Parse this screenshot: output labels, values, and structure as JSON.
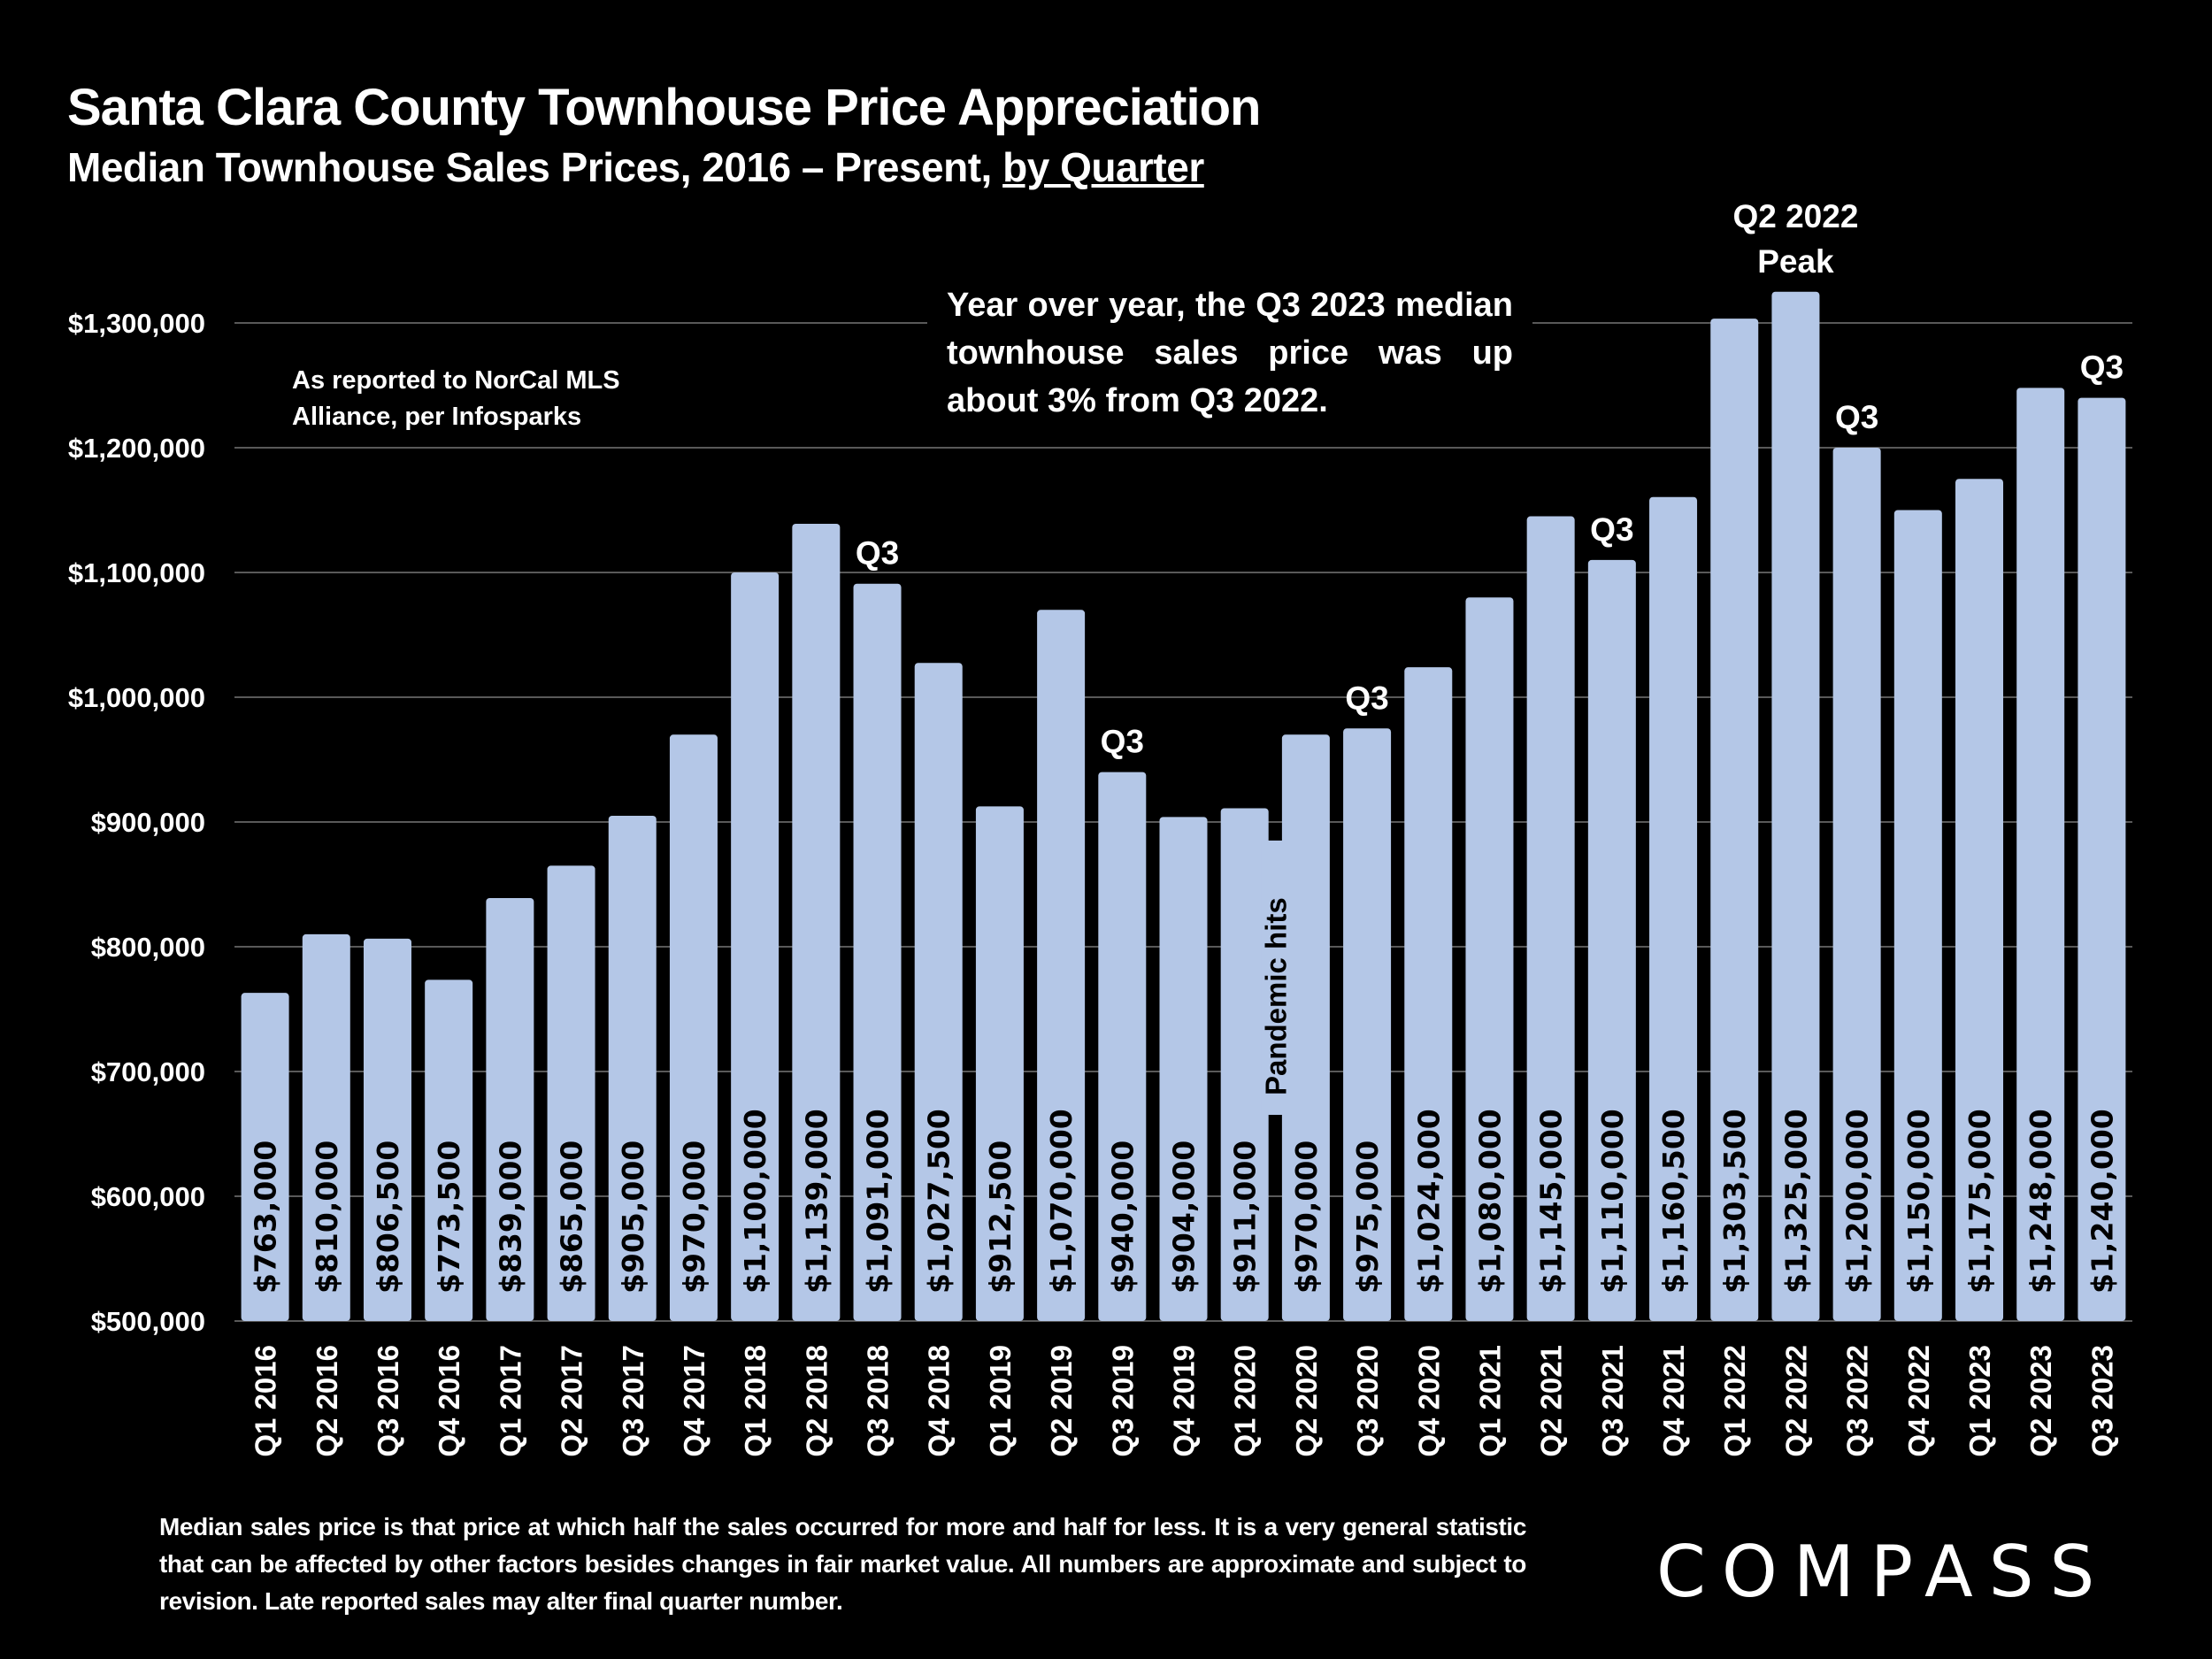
{
  "header": {
    "title": "Santa Clara County Townhouse Price Appreciation",
    "subtitle_main": "Median Townhouse Sales Prices, 2016 – Present, ",
    "subtitle_underlined": "by Quarter"
  },
  "notes": {
    "source": "As reported to NorCal MLS Alliance, per Infosparks",
    "yoy": "Year over year, the Q3 2023 median townhouse sales price was up about 3% from Q3 2022.",
    "footnote": "Median sales price is that price at which half the sales occurred for more and half for less. It is a very general statistic that can be affected by other factors besides changes in fair market value. All numbers are approximate and subject to revision. Late reported sales may alter final quarter number."
  },
  "logo": {
    "text": "COMPASS",
    "icon": "compass-logo-icon"
  },
  "colors": {
    "bar": "#b4c7e7",
    "background": "#000000",
    "gridline": "#595959",
    "text": "#ffffff",
    "label_text": "#000000"
  },
  "chart_data": {
    "type": "bar",
    "title": "Santa Clara County Townhouse Price Appreciation",
    "subtitle": "Median Townhouse Sales Prices, 2016 – Present, by Quarter",
    "xlabel": "",
    "ylabel": "",
    "ylim": [
      500000,
      1300000
    ],
    "yticks": [
      500000,
      600000,
      700000,
      800000,
      900000,
      1000000,
      1100000,
      1200000,
      1300000
    ],
    "ytick_labels": [
      "$500,000",
      "$600,000",
      "$700,000",
      "$800,000",
      "$900,000",
      "$1,000,000",
      "$1,100,000",
      "$1,200,000",
      "$1,300,000"
    ],
    "grid": true,
    "legend": "none",
    "categories": [
      "Q1 2016",
      "Q2 2016",
      "Q3 2016",
      "Q4 2016",
      "Q1 2017",
      "Q2 2017",
      "Q3 2017",
      "Q4 2017",
      "Q1 2018",
      "Q2 2018",
      "Q3 2018",
      "Q4 2018",
      "Q1 2019",
      "Q2 2019",
      "Q3 2019",
      "Q4 2019",
      "Q1 2020",
      "Q2 2020",
      "Q3 2020",
      "Q4 2020",
      "Q1 2021",
      "Q2 2021",
      "Q3 2021",
      "Q4 2021",
      "Q1 2022",
      "Q2 2022",
      "Q3 2022",
      "Q4 2022",
      "Q1 2023",
      "Q2 2023",
      "Q3 2023"
    ],
    "values": [
      763000,
      810000,
      806500,
      773500,
      839000,
      865000,
      905000,
      970000,
      1100000,
      1139000,
      1091000,
      1027500,
      912500,
      1070000,
      940000,
      904000,
      911000,
      970000,
      975000,
      1024000,
      1080000,
      1145000,
      1110000,
      1160500,
      1303500,
      1325000,
      1200000,
      1150000,
      1175000,
      1248000,
      1240000
    ],
    "value_labels": [
      "$763,000",
      "$810,000",
      "$806,500",
      "$773,500",
      "$839,000",
      "$865,000",
      "$905,000",
      "$970,000",
      "$1,100,000",
      "$1,139,000",
      "$1,091,000",
      "$1,027,500",
      "$912,500",
      "$1,070,000",
      "$940,000",
      "$904,000",
      "$911,000",
      "$970,000",
      "$975,000",
      "$1,024,000",
      "$1,080,000",
      "$1,145,000",
      "$1,110,000",
      "$1,160,500",
      "$1,303,500",
      "$1,325,000",
      "$1,200,000",
      "$1,150,000",
      "$1,175,000",
      "$1,248,000",
      "$1,240,000"
    ],
    "annotations": [
      {
        "category": "Q3 2018",
        "text": "Q3"
      },
      {
        "category": "Q3 2019",
        "text": "Q3"
      },
      {
        "category": "Q3 2020",
        "text": "Q3"
      },
      {
        "category": "Q3 2021",
        "text": "Q3"
      },
      {
        "category": "Q2 2022",
        "text": "Q2 2022 Peak",
        "lines": [
          "Q2 2022",
          "Peak"
        ]
      },
      {
        "category": "Q3 2022",
        "text": "Q3"
      },
      {
        "category": "Q3 2023",
        "text": "Q3"
      },
      {
        "between": [
          "Q1 2020",
          "Q2 2020"
        ],
        "text": "Pandemic hits"
      }
    ]
  }
}
